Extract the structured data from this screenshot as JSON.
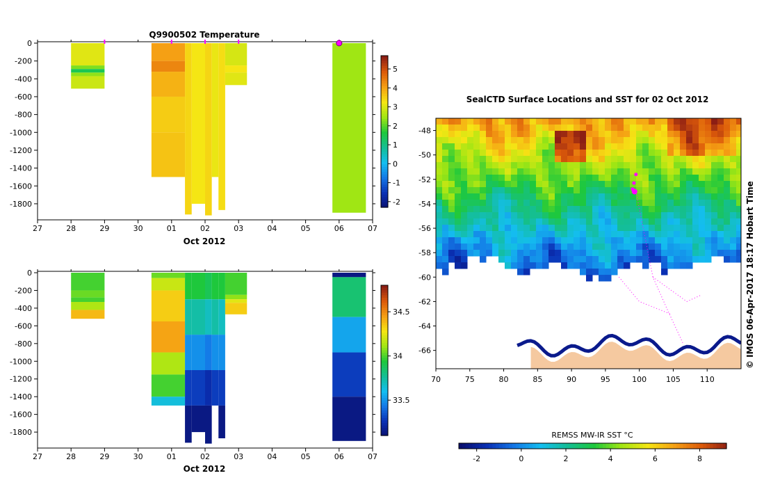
{
  "colors": {
    "magenta": "#ff00ff",
    "land": "#f5c9a0",
    "ice": "#ffffff"
  },
  "chart_data": [
    {
      "type": "heatmap",
      "title": "Q9900502  Temperature",
      "xlabel": "Oct 2012",
      "x_ticks": [
        "27",
        "28",
        "29",
        "30",
        "01",
        "02",
        "03",
        "04",
        "05",
        "06",
        "07"
      ],
      "y_ticks": [
        "0",
        "-200",
        "-400",
        "-600",
        "-800",
        "-1000",
        "-1200",
        "-1400",
        "-1600",
        "-1800"
      ],
      "ylim": [
        -1980,
        0
      ],
      "colorbar": {
        "min": -2.3,
        "max": 5.7,
        "ticks": [
          "5",
          "4",
          "3",
          "2",
          "1",
          "0",
          "-1",
          "-2"
        ],
        "tick_values": [
          5,
          4,
          3,
          2,
          1,
          0,
          -1,
          -2
        ]
      },
      "profile_markers": [
        29,
        31,
        32,
        33,
        36
      ],
      "highlight_marker": 36,
      "profiles": [
        {
          "x0": 28.0,
          "x1": 29.0,
          "depth": 510,
          "layers": [
            [
              0,
              250,
              3.1
            ],
            [
              250,
              290,
              2.3
            ],
            [
              290,
              330,
              1.5
            ],
            [
              330,
              370,
              2.4
            ],
            [
              370,
              510,
              2.9
            ]
          ]
        },
        {
          "x0": 30.4,
          "x1": 31.4,
          "depth": 1500,
          "layers": [
            [
              0,
              200,
              4.1
            ],
            [
              200,
              320,
              4.4
            ],
            [
              320,
              600,
              3.9
            ],
            [
              600,
              1000,
              3.6
            ],
            [
              1000,
              1500,
              3.7
            ]
          ]
        },
        {
          "x0": 31.4,
          "x1": 31.6,
          "depth": 1920,
          "layers": [
            [
              0,
              1920,
              3.5
            ]
          ]
        },
        {
          "x0": 31.6,
          "x1": 32.0,
          "depth": 1800,
          "layers": [
            [
              0,
              1800,
              3.3
            ]
          ]
        },
        {
          "x0": 32.0,
          "x1": 32.2,
          "depth": 1930,
          "layers": [
            [
              0,
              1930,
              3.5
            ]
          ]
        },
        {
          "x0": 32.2,
          "x1": 32.4,
          "depth": 1500,
          "layers": [
            [
              0,
              1500,
              3.2
            ]
          ]
        },
        {
          "x0": 32.4,
          "x1": 32.6,
          "depth": 1870,
          "layers": [
            [
              0,
              1870,
              3.4
            ]
          ]
        },
        {
          "x0": 32.6,
          "x1": 33.25,
          "depth": 470,
          "layers": [
            [
              0,
              250,
              3.0
            ],
            [
              250,
              330,
              3.3
            ],
            [
              330,
              470,
              3.1
            ]
          ]
        },
        {
          "x0": 35.8,
          "x1": 36.8,
          "depth": 1900,
          "layers": [
            [
              0,
              1900,
              2.5
            ]
          ]
        }
      ]
    },
    {
      "type": "heatmap",
      "title": "",
      "xlabel": "Oct 2012",
      "x_ticks": [
        "27",
        "28",
        "29",
        "30",
        "01",
        "02",
        "03",
        "04",
        "05",
        "06",
        "07"
      ],
      "y_ticks": [
        "0",
        "-200",
        "-400",
        "-600",
        "-800",
        "-1000",
        "-1200",
        "-1400",
        "-1600",
        "-1800"
      ],
      "ylim": [
        -1980,
        0
      ],
      "colorbar": {
        "min": 33.1,
        "max": 34.8,
        "ticks": [
          "34.5",
          "34",
          "33.5"
        ],
        "tick_values": [
          34.5,
          34.0,
          33.5
        ]
      },
      "profiles": [
        {
          "x0": 28.0,
          "x1": 29.0,
          "depth": 520,
          "layers": [
            [
              0,
              200,
              34.0
            ],
            [
              200,
              280,
              34.05
            ],
            [
              280,
              330,
              34.0
            ],
            [
              330,
              420,
              34.15
            ],
            [
              420,
              520,
              34.4
            ]
          ]
        },
        {
          "x0": 30.4,
          "x1": 31.4,
          "depth": 1500,
          "layers": [
            [
              0,
              60,
              34.05
            ],
            [
              60,
              200,
              34.2
            ],
            [
              200,
              550,
              34.35
            ],
            [
              550,
              900,
              34.45
            ],
            [
              900,
              1150,
              34.15
            ],
            [
              1150,
              1400,
              34.0
            ],
            [
              1400,
              1500,
              33.65
            ]
          ]
        },
        {
          "x0": 31.4,
          "x1": 31.6,
          "depth": 1920,
          "layers": [
            [
              0,
              300,
              33.95
            ],
            [
              300,
              700,
              33.75
            ],
            [
              700,
              1100,
              33.5
            ],
            [
              1100,
              1500,
              33.3
            ],
            [
              1500,
              1920,
              33.15
            ]
          ]
        },
        {
          "x0": 31.6,
          "x1": 32.0,
          "depth": 1800,
          "layers": [
            [
              0,
              300,
              33.95
            ],
            [
              300,
              700,
              33.75
            ],
            [
              700,
              1100,
              33.5
            ],
            [
              1100,
              1500,
              33.3
            ],
            [
              1500,
              1800,
              33.15
            ]
          ]
        },
        {
          "x0": 32.0,
          "x1": 32.2,
          "depth": 1930,
          "layers": [
            [
              0,
              300,
              33.9
            ],
            [
              300,
              700,
              33.7
            ],
            [
              700,
              1100,
              33.45
            ],
            [
              1100,
              1500,
              33.25
            ],
            [
              1500,
              1930,
              33.15
            ]
          ]
        },
        {
          "x0": 32.2,
          "x1": 32.4,
          "depth": 1500,
          "layers": [
            [
              0,
              300,
              33.95
            ],
            [
              300,
              700,
              33.75
            ],
            [
              700,
              1100,
              33.5
            ],
            [
              1100,
              1500,
              33.3
            ]
          ]
        },
        {
          "x0": 32.4,
          "x1": 32.6,
          "depth": 1870,
          "layers": [
            [
              0,
              300,
              33.95
            ],
            [
              300,
              700,
              33.7
            ],
            [
              700,
              1100,
              33.5
            ],
            [
              1100,
              1500,
              33.3
            ],
            [
              1500,
              1870,
              33.15
            ]
          ]
        },
        {
          "x0": 32.6,
          "x1": 33.25,
          "depth": 470,
          "layers": [
            [
              0,
              250,
              34.0
            ],
            [
              250,
              300,
              34.1
            ],
            [
              300,
              340,
              34.25
            ],
            [
              340,
              470,
              34.35
            ]
          ]
        },
        {
          "x0": 35.8,
          "x1": 36.8,
          "depth": 1900,
          "layers": [
            [
              0,
              50,
              33.15
            ],
            [
              50,
              500,
              33.85
            ],
            [
              500,
              900,
              33.55
            ],
            [
              900,
              1400,
              33.3
            ],
            [
              1400,
              1900,
              33.15
            ]
          ]
        }
      ]
    },
    {
      "type": "heatmap",
      "title": "SealCTD Surface Locations and SST for 02 Oct 2012",
      "xlim": [
        70,
        115
      ],
      "ylim": [
        -67.5,
        -47
      ],
      "x_ticks": [
        "70",
        "75",
        "80",
        "85",
        "90",
        "95",
        "100",
        "105",
        "110"
      ],
      "x_tick_values": [
        70,
        75,
        80,
        85,
        90,
        95,
        100,
        105,
        110
      ],
      "y_ticks": [
        "-48",
        "-50",
        "-52",
        "-54",
        "-56",
        "-58",
        "-60",
        "-62",
        "-64",
        "-66"
      ],
      "y_tick_values": [
        -48,
        -50,
        -52,
        -54,
        -56,
        -58,
        -60,
        -62,
        -64,
        -66
      ],
      "colorbar": {
        "label": "REMSS MW-IR SST °C",
        "min": -2.8,
        "max": 9.2,
        "ticks": [
          "-2",
          "0",
          "2",
          "4",
          "6",
          "8"
        ],
        "tick_values": [
          -2,
          0,
          2,
          4,
          6,
          8
        ]
      },
      "current_positions": [
        [
          99.2,
          -52.3
        ],
        [
          99.0,
          -52.8
        ],
        [
          99.3,
          -53.0
        ],
        [
          99.5,
          -51.6
        ]
      ],
      "timestamp": "© IMOS 06-Apr-2017 18:17 Hobart Time"
    }
  ]
}
